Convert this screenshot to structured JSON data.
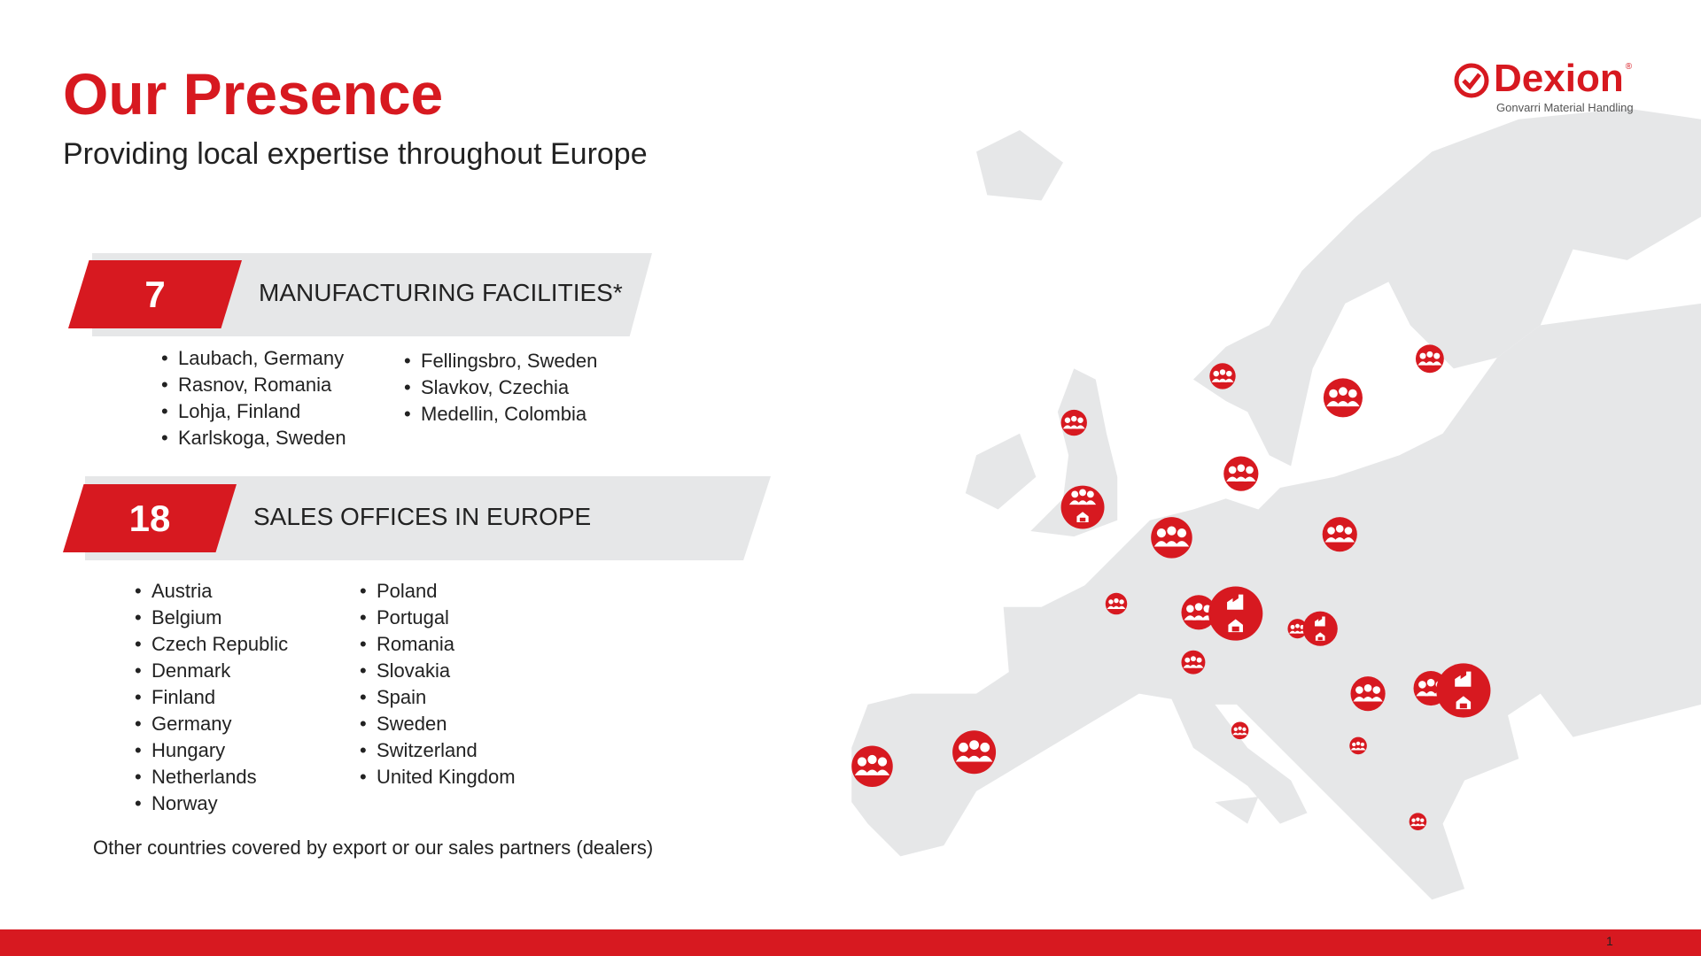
{
  "header": {
    "title": "Our Presence",
    "subtitle": "Providing local expertise throughout Europe"
  },
  "logo": {
    "brand": "Dexion",
    "tagline": "Gonvarri Material Handling",
    "mark": "®"
  },
  "manufacturing": {
    "count": "7",
    "label": "MANUFACTURING FACILITIES*",
    "col1": [
      "Laubach, Germany",
      "Rasnov, Romania",
      "Lohja, Finland",
      "Karlskoga, Sweden"
    ],
    "col2": [
      "Fellingsbro, Sweden",
      "Slavkov, Czechia",
      "Medellin, Colombia"
    ]
  },
  "sales": {
    "count": "18",
    "label": "SALES OFFICES IN EUROPE",
    "col1": [
      "Austria",
      "Belgium",
      "Czech Republic",
      "Denmark",
      "Finland",
      "Germany",
      "Hungary",
      "Netherlands",
      "Norway"
    ],
    "col2": [
      "Poland",
      "Portugal",
      "Romania",
      "Slovakia",
      "Spain",
      "Sweden",
      "Switzerland",
      "United Kingdom"
    ]
  },
  "note": "Other countries covered by export or our sales partners (dealers)",
  "page_number": "1",
  "colors": {
    "accent": "#d71920",
    "map": "#e6e7e8",
    "banner": "#e6e7e8"
  },
  "icons": {
    "office": "people-icon",
    "factory": "factory-icon",
    "warehouse": "warehouse-icon"
  }
}
